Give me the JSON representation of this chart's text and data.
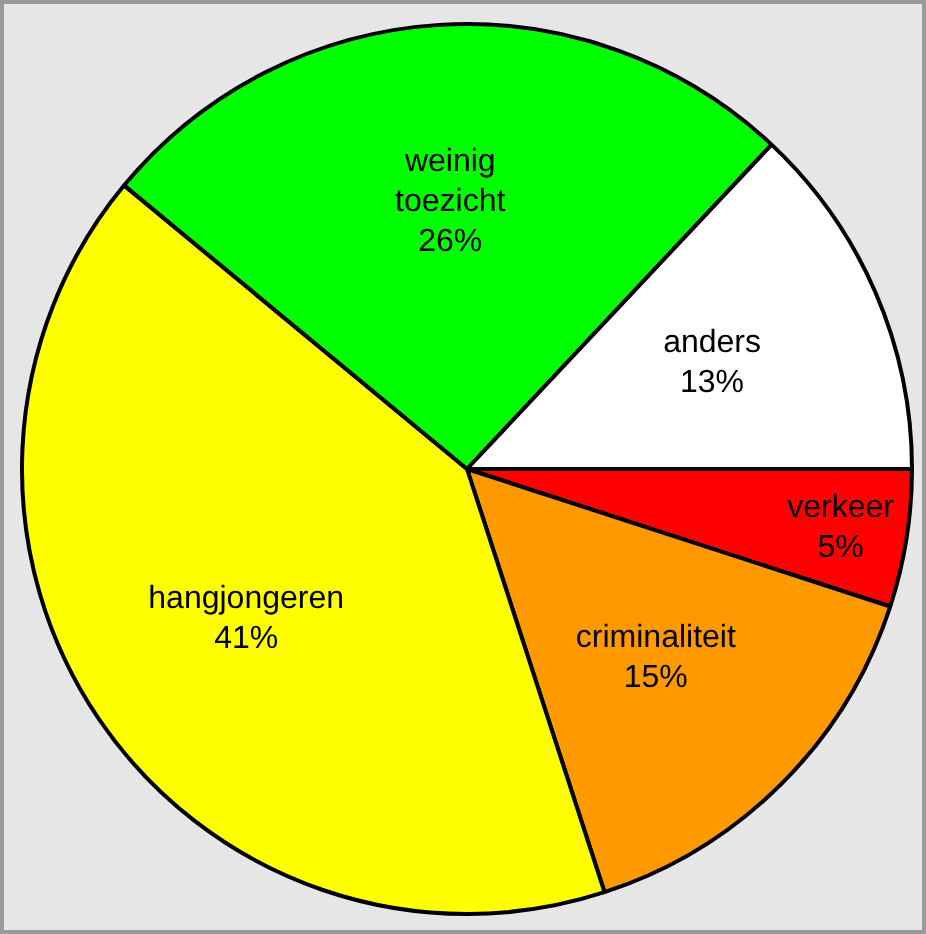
{
  "chart_data": {
    "type": "pie",
    "categories": [
      "verkeer",
      "criminaliteit",
      "hangjongeren",
      "weinig toezicht",
      "anders"
    ],
    "values": [
      5,
      15,
      41,
      26,
      13
    ],
    "colors": [
      "#ff0000",
      "#ff9900",
      "#ffff00",
      "#00ff00",
      "#ffffff"
    ],
    "value_labels": [
      "5%",
      "15%",
      "41%",
      "26%",
      "13%"
    ],
    "legend": false
  }
}
